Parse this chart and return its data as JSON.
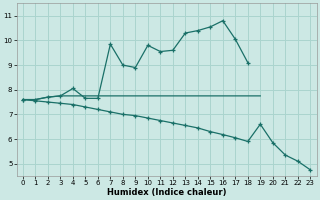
{
  "xlabel": "Humidex (Indice chaleur)",
  "bg_color": "#cce8e4",
  "grid_color": "#aad4ce",
  "line_color": "#1a7068",
  "line1_x": [
    0,
    1,
    2,
    3,
    4,
    5,
    6,
    7,
    8,
    9,
    10,
    11,
    12,
    13,
    14,
    15,
    16,
    17,
    18
  ],
  "line1_y": [
    7.6,
    7.6,
    7.7,
    7.75,
    8.05,
    7.65,
    7.65,
    9.85,
    9.0,
    8.9,
    9.8,
    9.55,
    9.6,
    10.3,
    10.4,
    10.55,
    10.8,
    10.05,
    9.1
  ],
  "line2_x": [
    0,
    1,
    2,
    3,
    4,
    5,
    6,
    7,
    8,
    9,
    10,
    11,
    12,
    13,
    14,
    15,
    16,
    17,
    18,
    19
  ],
  "line2_y": [
    7.6,
    7.6,
    7.7,
    7.75,
    7.75,
    7.75,
    7.75,
    7.75,
    7.75,
    7.75,
    7.75,
    7.75,
    7.75,
    7.75,
    7.75,
    7.75,
    7.75,
    7.75,
    7.75,
    7.75
  ],
  "line3_x": [
    0,
    1,
    2,
    3,
    4,
    5,
    6,
    7,
    8,
    9,
    10,
    11,
    12,
    13,
    14,
    15,
    16,
    17,
    18,
    19,
    20,
    21,
    22,
    23
  ],
  "line3_y": [
    7.6,
    7.55,
    7.5,
    7.45,
    7.4,
    7.3,
    7.2,
    7.1,
    7.0,
    6.95,
    6.85,
    6.75,
    6.65,
    6.55,
    6.45,
    6.3,
    6.18,
    6.05,
    5.9,
    6.6,
    5.85,
    5.35,
    5.1,
    4.75
  ],
  "ylim": [
    4.5,
    11.5
  ],
  "xlim": [
    -0.5,
    23.5
  ],
  "yticks": [
    5,
    6,
    7,
    8,
    9,
    10,
    11
  ],
  "xticks": [
    0,
    1,
    2,
    3,
    4,
    5,
    6,
    7,
    8,
    9,
    10,
    11,
    12,
    13,
    14,
    15,
    16,
    17,
    18,
    19,
    20,
    21,
    22,
    23
  ]
}
